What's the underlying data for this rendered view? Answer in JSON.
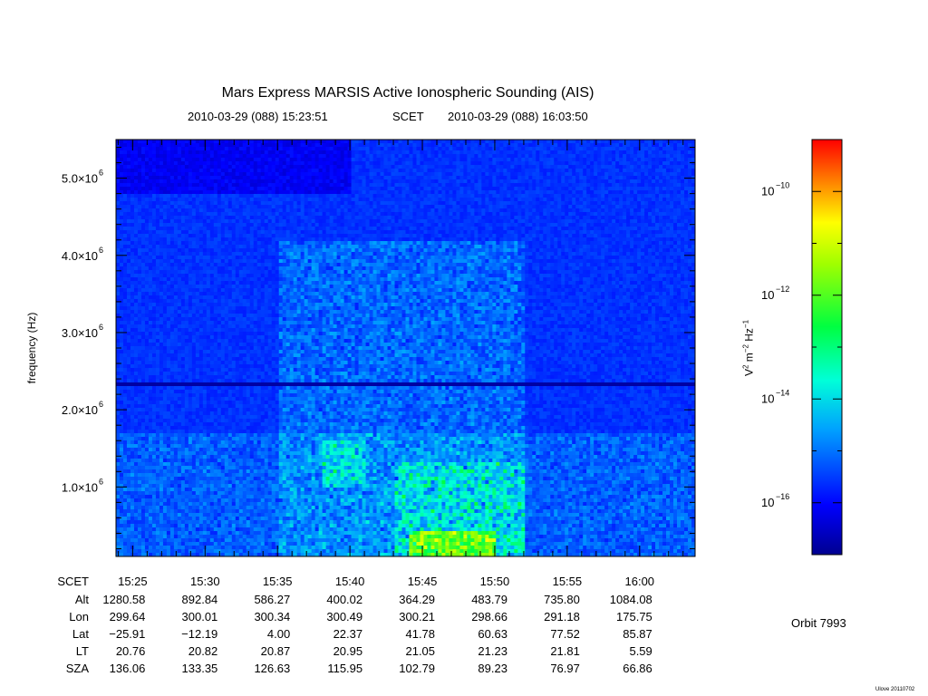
{
  "chart_data": {
    "type": "heatmap",
    "title": "Mars Express MARSIS Active Ionospheric Sounding (AIS)",
    "time_range": {
      "start": "2010-03-29 (088) 15:23:51",
      "label": "SCET",
      "end": "2010-03-29 (088) 16:03:50"
    },
    "ylabel": "frequency (Hz)",
    "ylim": [
      100000,
      5500000
    ],
    "y_ticks": [
      {
        "value": 1000000,
        "mantissa": "1.0×10",
        "exp": "6"
      },
      {
        "value": 2000000,
        "mantissa": "2.0×10",
        "exp": "6"
      },
      {
        "value": 3000000,
        "mantissa": "3.0×10",
        "exp": "6"
      },
      {
        "value": 4000000,
        "mantissa": "4.0×10",
        "exp": "6"
      },
      {
        "value": 5000000,
        "mantissa": "5.0×10",
        "exp": "6"
      }
    ],
    "time_minutes_range": [
      923.85,
      963.83
    ],
    "colorbar": {
      "label_base": "V",
      "label": "V² m⁻² Hz⁻¹",
      "log_range": [
        -17,
        -9
      ],
      "ticks": [
        {
          "value": -10,
          "text": "10",
          "exp": "−10"
        },
        {
          "value": -12,
          "text": "10",
          "exp": "−12"
        },
        {
          "value": -14,
          "text": "10",
          "exp": "−14"
        },
        {
          "value": -16,
          "text": "10",
          "exp": "−16"
        }
      ]
    },
    "ephemeris": {
      "row_labels": [
        "SCET",
        "Alt",
        "Lon",
        "Lat",
        "LT",
        "SZA"
      ],
      "columns": [
        {
          "minutes": 925,
          "SCET": "15:25",
          "Alt": "1280.58",
          "Lon": "299.64",
          "Lat": "−25.91",
          "LT": "20.76",
          "SZA": "136.06"
        },
        {
          "minutes": 930,
          "SCET": "15:30",
          "Alt": "892.84",
          "Lon": "300.01",
          "Lat": "−12.19",
          "LT": "20.82",
          "SZA": "133.35"
        },
        {
          "minutes": 935,
          "SCET": "15:35",
          "Alt": "586.27",
          "Lon": "300.34",
          "Lat": "4.00",
          "LT": "20.87",
          "SZA": "126.63"
        },
        {
          "minutes": 940,
          "SCET": "15:40",
          "Alt": "400.02",
          "Lon": "300.49",
          "Lat": "22.37",
          "LT": "20.95",
          "SZA": "115.95"
        },
        {
          "minutes": 945,
          "SCET": "15:45",
          "Alt": "364.29",
          "Lon": "300.21",
          "Lat": "41.78",
          "LT": "21.05",
          "SZA": "102.79"
        },
        {
          "minutes": 950,
          "SCET": "15:50",
          "Alt": "483.79",
          "Lon": "298.66",
          "Lat": "60.63",
          "LT": "21.23",
          "SZA": "89.23"
        },
        {
          "minutes": 955,
          "SCET": "15:55",
          "Alt": "735.80",
          "Lon": "291.18",
          "Lat": "77.52",
          "LT": "21.81",
          "SZA": "76.97"
        },
        {
          "minutes": 960,
          "SCET": "16:00",
          "Alt": "1084.08",
          "Lon": "175.75",
          "Lat": "85.87",
          "LT": "5.59",
          "SZA": "66.86"
        }
      ]
    }
  },
  "orbit_label": "Orbit 7993",
  "credit": "Ulove 20110702"
}
